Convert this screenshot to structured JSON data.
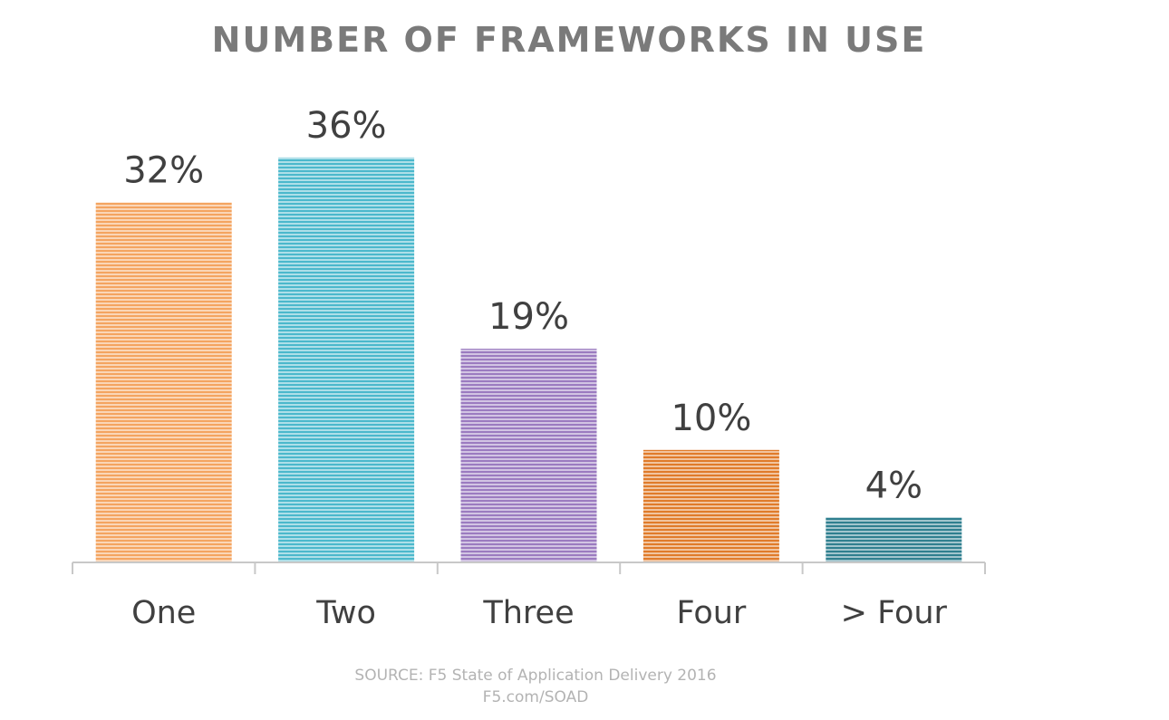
{
  "chart_data": {
    "type": "bar",
    "title": "NUMBER OF FRAMEWORKS IN USE",
    "categories": [
      "One",
      "Two",
      "Three",
      "Four",
      "> Four"
    ],
    "values": [
      32,
      36,
      19,
      10,
      4
    ],
    "value_labels": [
      "32%",
      "36%",
      "19%",
      "10%",
      "4%"
    ],
    "ylim": [
      0,
      40
    ],
    "grid": false,
    "legend": "none",
    "colors": [
      "#f4a460",
      "#4bb8cc",
      "#9b7bc0",
      "#e07b2a",
      "#2f7f8f"
    ],
    "source_line1": "SOURCE: F5 State of Application Delivery 2016",
    "source_line2": "F5.com/SOAD"
  }
}
